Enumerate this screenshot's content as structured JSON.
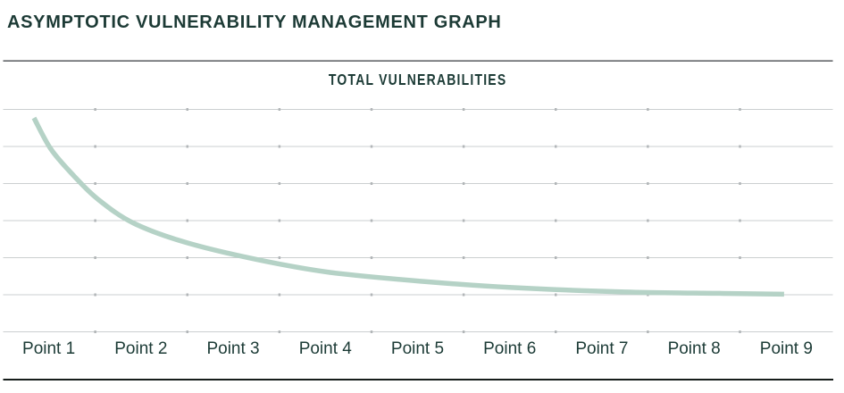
{
  "header": {
    "title": "ASYMPTOTIC VULNERABILITY MANAGEMENT GRAPH"
  },
  "chart": {
    "axis_title": "TOTAL VULNERABILITIES"
  },
  "chart_data": {
    "type": "line",
    "title": "TOTAL VULNERABILITIES",
    "categories": [
      "Point 1",
      "Point 2",
      "Point 3",
      "Point 4",
      "Point 5",
      "Point 6",
      "Point 7",
      "Point 8",
      "Point 9"
    ],
    "values": [
      83,
      48,
      35,
      27,
      23,
      20,
      18.2,
      17.4,
      16.9
    ],
    "units": "relative (no numeric y-axis scale shown)",
    "shape": "asymptotic decay approaching a horizontal asymptote",
    "curve_samples": [
      [
        0.835,
        96.2
      ],
      [
        1.02,
        82.1
      ],
      [
        1.27,
        70.1
      ],
      [
        1.53,
        59.6
      ],
      [
        1.92,
        48.8
      ],
      [
        2.5,
        40.0
      ],
      [
        3.28,
        32.3
      ],
      [
        4.05,
        26.7
      ],
      [
        5.05,
        22.7
      ],
      [
        6.02,
        19.9
      ],
      [
        7.25,
        17.9
      ],
      [
        8.28,
        17.3
      ],
      [
        8.98,
        16.9
      ]
    ],
    "xlabel": "",
    "ylabel": "",
    "ylim": [
      0,
      100
    ],
    "grid": "horizontal only",
    "gridline_count": 7,
    "legend": "none",
    "line_color": "#b5d2c6"
  },
  "colors": {
    "text": "#1c3b36",
    "curve": "#b5d2c6",
    "gridline": "#cbcfd0",
    "grid_tick": "#b2b6b8",
    "top_rule": "#63666a",
    "bottom_rule": "#161d1b"
  }
}
